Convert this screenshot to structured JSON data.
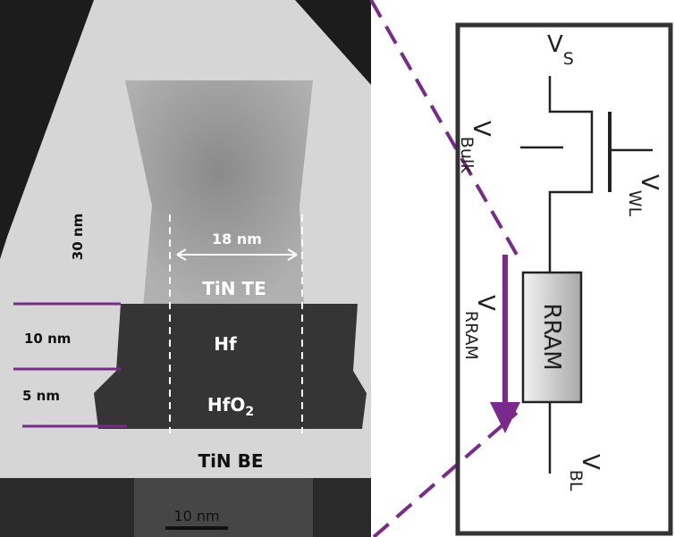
{
  "tem_image": {
    "thickness_labels": [
      "30 nm",
      "10 nm",
      "5 nm"
    ],
    "width_label": "18 nm",
    "layers": [
      {
        "main": "TiN TE"
      },
      {
        "main": "Hf"
      },
      {
        "main": "HfO",
        "sub": "2"
      },
      {
        "main": "TiN BE"
      }
    ],
    "scale_bar": "10 nm"
  },
  "circuit": {
    "source": {
      "main": "V",
      "sub": "S"
    },
    "bulk": {
      "main": "V",
      "sub": "Bulk"
    },
    "word_line": {
      "main": "V",
      "sub": "WL"
    },
    "rram_voltage": {
      "main": "V",
      "sub": "RRAM"
    },
    "device": "RRAM",
    "bit_line": {
      "main": "V",
      "sub": "BL"
    }
  }
}
